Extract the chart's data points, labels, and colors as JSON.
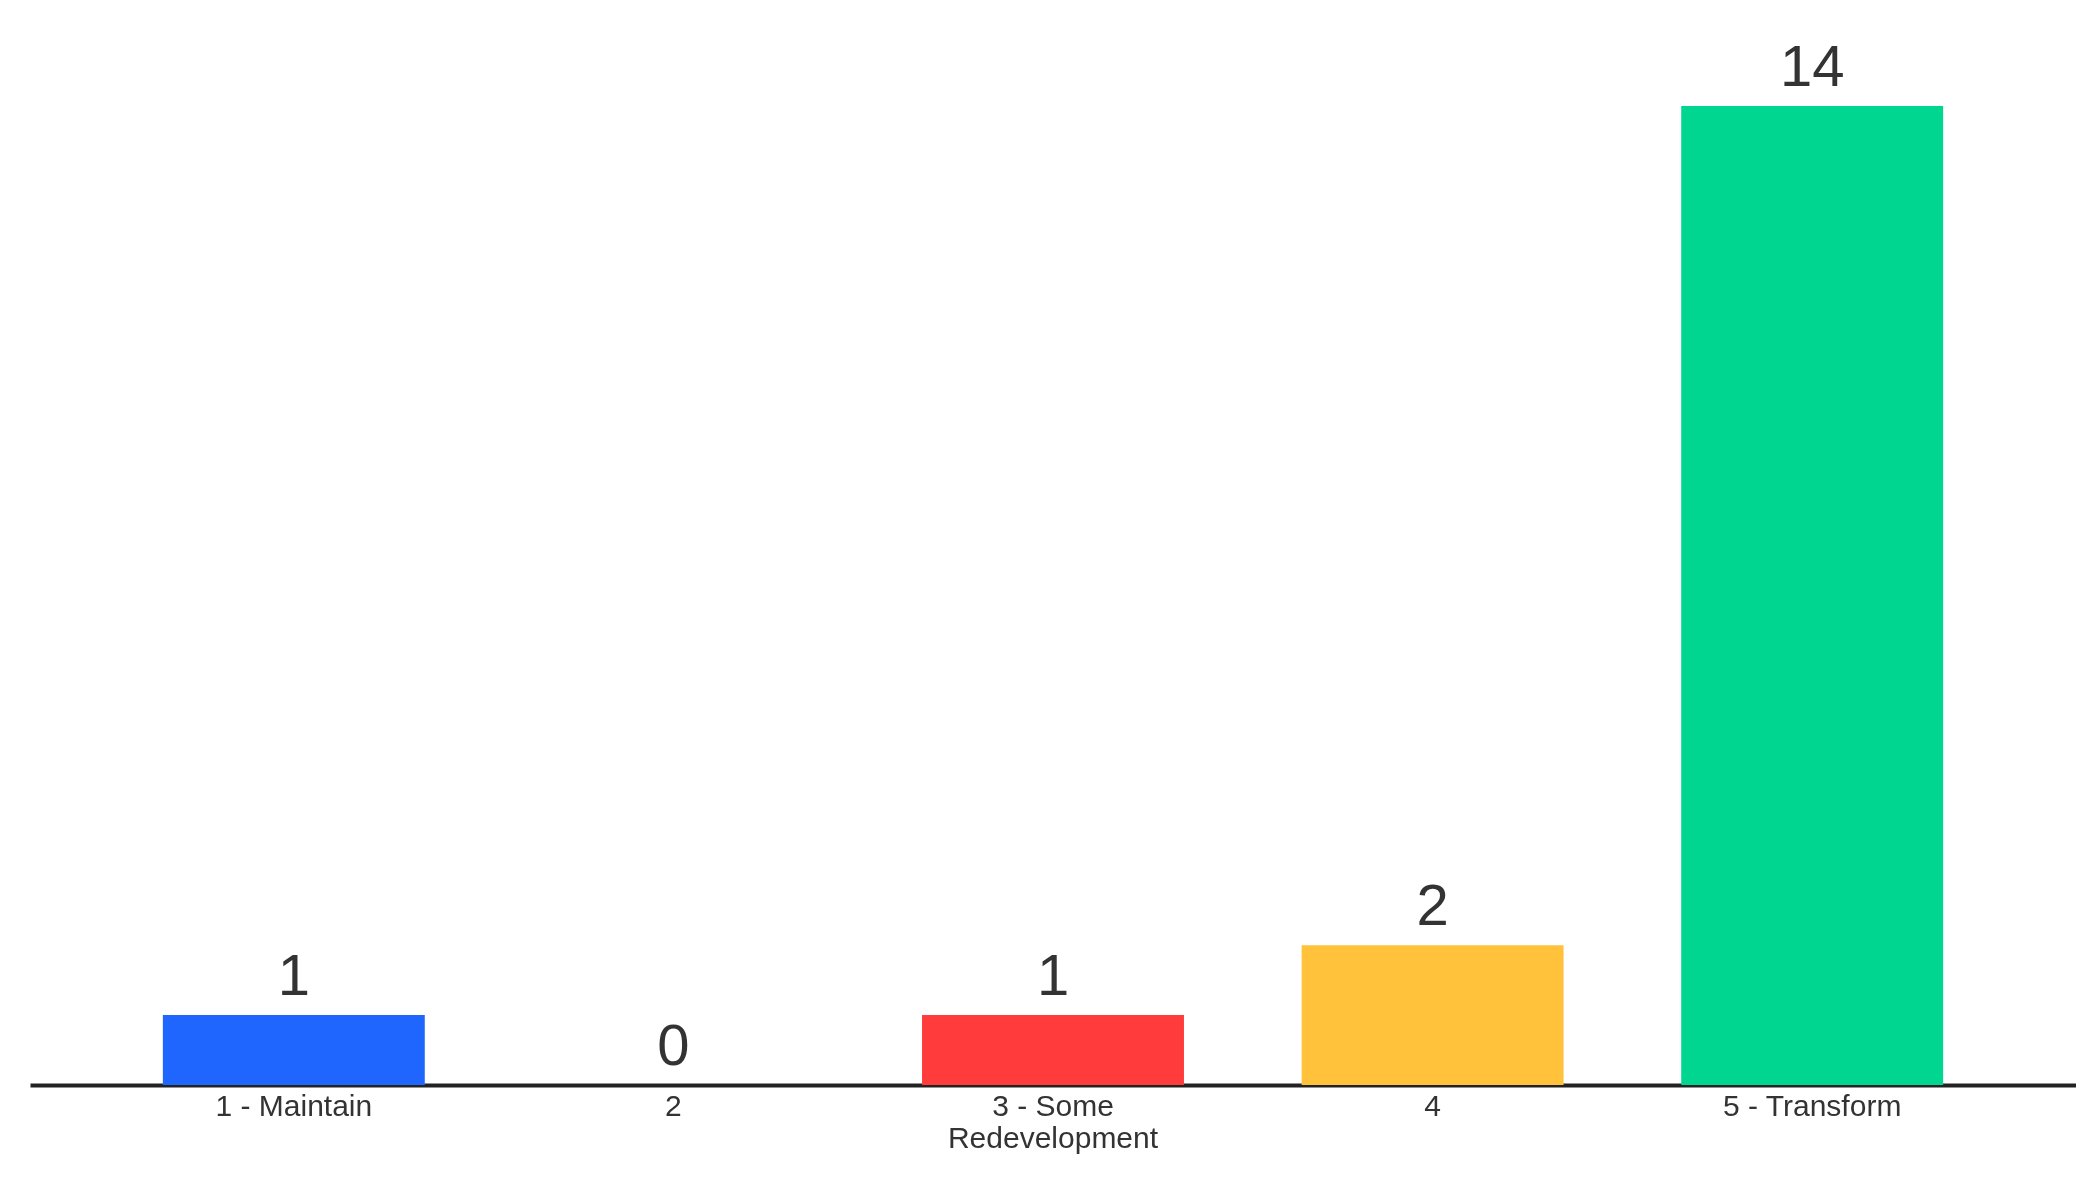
{
  "chart_data": {
    "type": "bar",
    "categories": [
      "1 - Maintain",
      "2",
      "3 - Some Redevelopment",
      "4",
      "5 - Transform"
    ],
    "values": [
      1,
      0,
      1,
      2,
      14
    ],
    "colors": [
      "#1f66ff",
      "#9e9e9e",
      "#ff3b3b",
      "#ffc23a",
      "#00d68f"
    ],
    "data_labels": true
  }
}
